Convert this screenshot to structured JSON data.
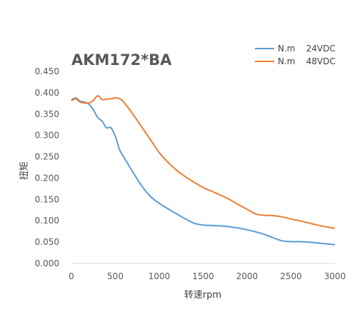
{
  "chart_data": {
    "type": "line",
    "title": "AKM172*BA",
    "xlabel": "转速rpm",
    "ylabel": "扭矩",
    "xlim": [
      0,
      3000
    ],
    "ylim": [
      0,
      0.45
    ],
    "xticks": [
      "0",
      "500",
      "1000",
      "1500",
      "2000",
      "2500",
      "3000"
    ],
    "yticks": [
      "0.000",
      "0.050",
      "0.100",
      "0.150",
      "0.200",
      "0.250",
      "0.300",
      "0.350",
      "0.400",
      "0.450"
    ],
    "grid": false,
    "legend_position": "top-right",
    "series": [
      {
        "name": "N.m    24VDC",
        "color": "#5B9BD5",
        "x": [
          0,
          50,
          100,
          150,
          200,
          250,
          300,
          350,
          400,
          450,
          500,
          550,
          600,
          700,
          800,
          900,
          1000,
          1100,
          1200,
          1300,
          1400,
          1500,
          1600,
          1700,
          1800,
          1900,
          2000,
          2100,
          2200,
          2300,
          2400,
          2500,
          2600,
          2700,
          2800,
          2900,
          3000
        ],
        "y": [
          0.383,
          0.388,
          0.38,
          0.378,
          0.373,
          0.36,
          0.342,
          0.333,
          0.318,
          0.318,
          0.298,
          0.266,
          0.248,
          0.214,
          0.182,
          0.157,
          0.141,
          0.128,
          0.116,
          0.104,
          0.094,
          0.09,
          0.089,
          0.088,
          0.086,
          0.083,
          0.079,
          0.074,
          0.068,
          0.06,
          0.053,
          0.051,
          0.051,
          0.05,
          0.048,
          0.046,
          0.044
        ]
      },
      {
        "name": "N.m    48VDC",
        "color": "#ED7D31",
        "x": [
          0,
          50,
          100,
          150,
          200,
          250,
          300,
          350,
          400,
          450,
          500,
          550,
          600,
          700,
          800,
          900,
          1000,
          1100,
          1200,
          1300,
          1400,
          1500,
          1600,
          1700,
          1800,
          1900,
          2000,
          2100,
          2200,
          2300,
          2400,
          2500,
          2600,
          2700,
          2800,
          2900,
          3000
        ],
        "y": [
          0.381,
          0.386,
          0.378,
          0.376,
          0.376,
          0.382,
          0.393,
          0.384,
          0.385,
          0.386,
          0.388,
          0.386,
          0.377,
          0.35,
          0.32,
          0.29,
          0.26,
          0.237,
          0.218,
          0.203,
          0.19,
          0.178,
          0.169,
          0.16,
          0.15,
          0.138,
          0.127,
          0.116,
          0.113,
          0.112,
          0.109,
          0.104,
          0.1,
          0.095,
          0.09,
          0.086,
          0.082
        ]
      }
    ]
  }
}
